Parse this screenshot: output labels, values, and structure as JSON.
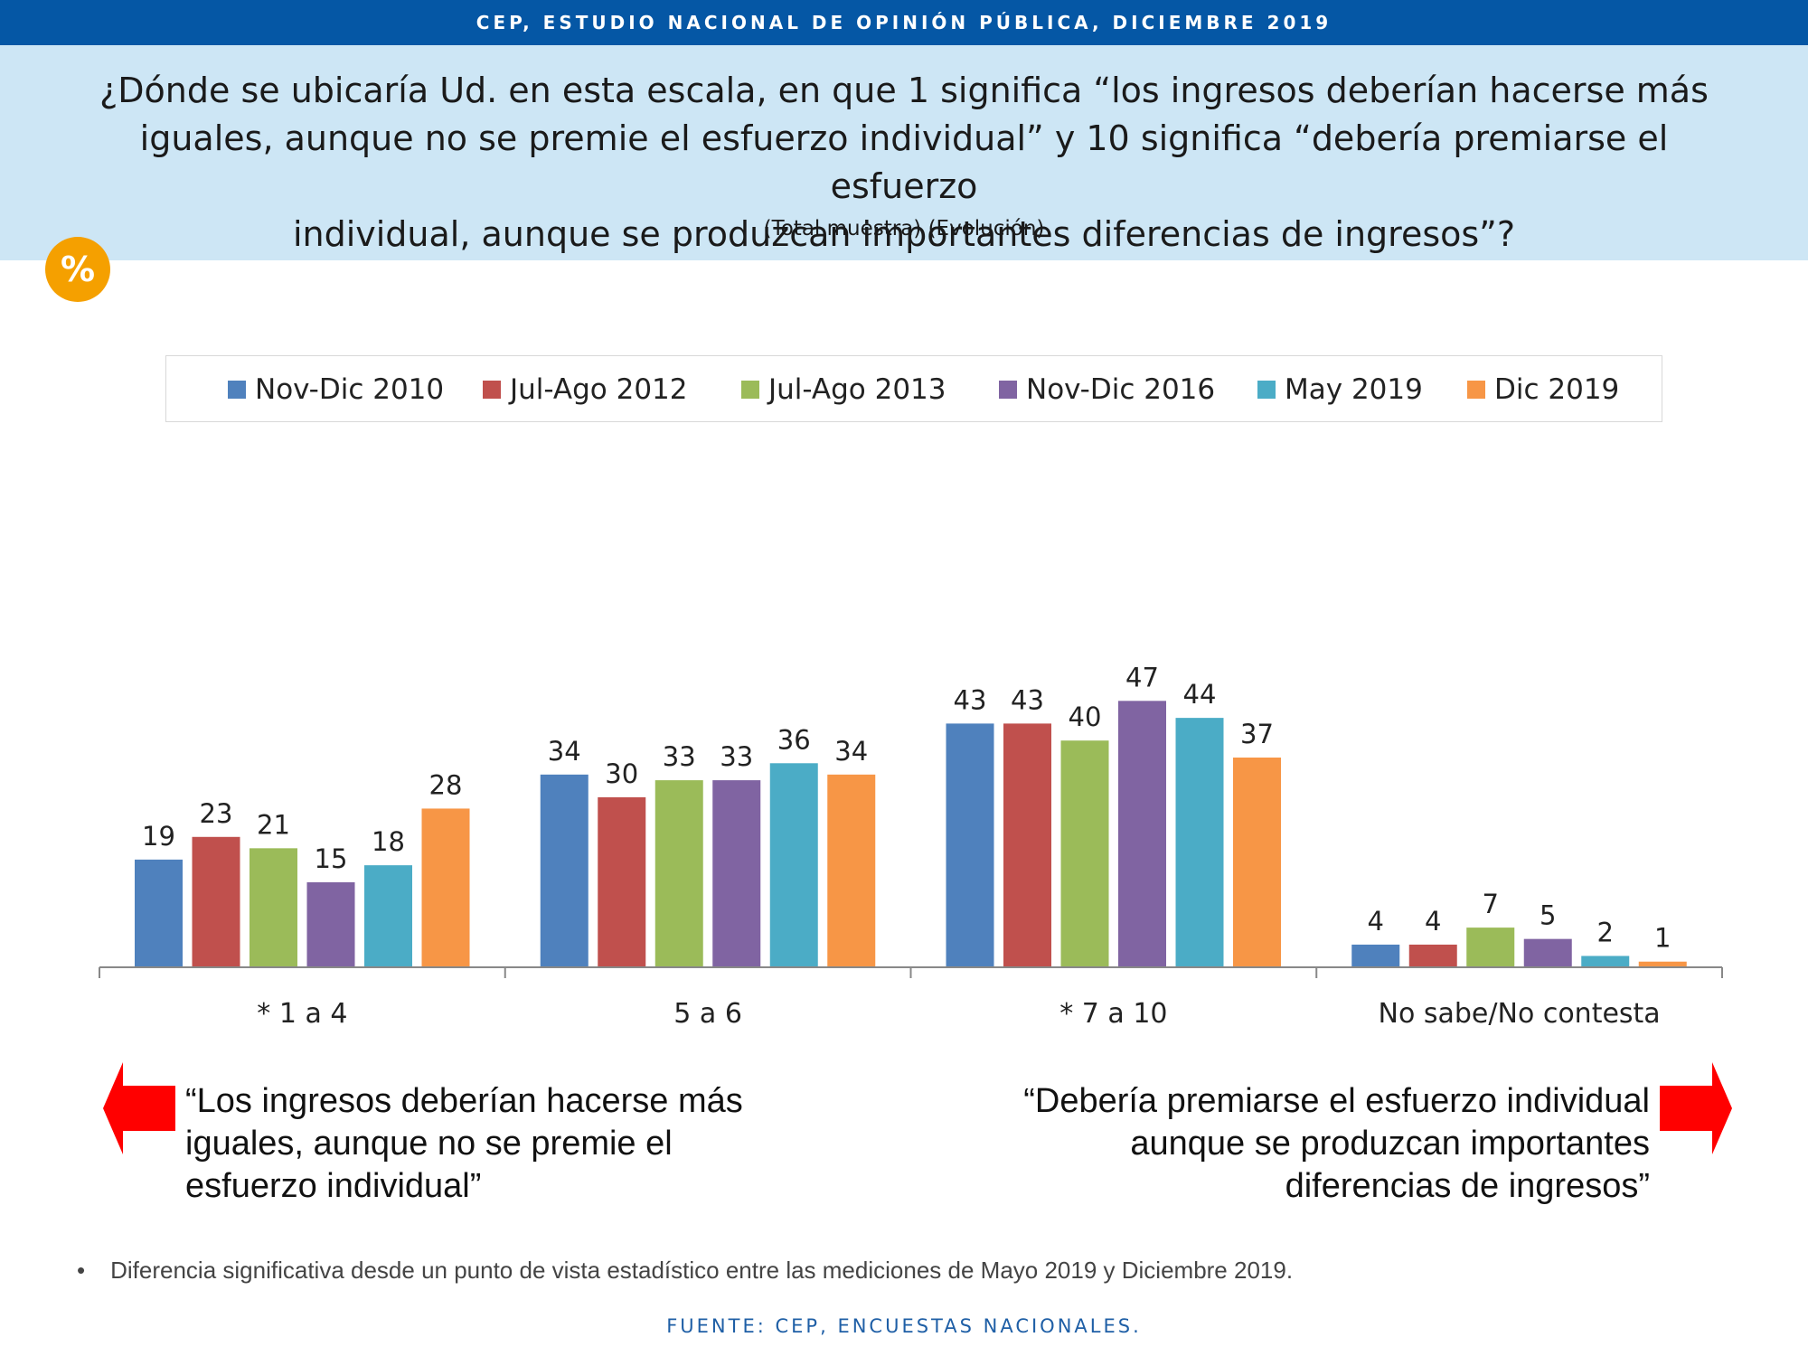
{
  "header": {
    "title": "CEP, ESTUDIO NACIONAL DE OPINIÓN PÚBLICA, DICIEMBRE 2019"
  },
  "question": {
    "line1": "¿Dónde se ubicaría Ud. en esta escala, en que 1 significa “los ingresos deberían hacerse más",
    "line2": "iguales, aunque no se premie el esfuerzo individual” y 10 significa “debería premiarse el esfuerzo",
    "line3": "individual, aunque se produzcan importantes diferencias de ingresos”?",
    "sub": "(Total muestra) (Evolución)"
  },
  "badge": {
    "label": "%",
    "color": "#f5a000"
  },
  "chart_data": {
    "type": "bar",
    "categories": [
      "* 1 a 4",
      "5 a 6",
      "* 7 a 10",
      "No sabe/No contesta"
    ],
    "series": [
      {
        "name": "Nov-Dic 2010",
        "color": "#4f81bd",
        "values": [
          19,
          34,
          43,
          4
        ]
      },
      {
        "name": "Jul-Ago 2012",
        "color": "#c0504d",
        "values": [
          23,
          30,
          43,
          4
        ]
      },
      {
        "name": "Jul-Ago 2013",
        "color": "#9bbb59",
        "values": [
          21,
          33,
          40,
          7
        ]
      },
      {
        "name": "Nov-Dic 2016",
        "color": "#8064a2",
        "values": [
          15,
          33,
          47,
          5
        ]
      },
      {
        "name": "May 2019",
        "color": "#4bacc6",
        "values": [
          18,
          36,
          44,
          2
        ]
      },
      {
        "name": "Dic 2019",
        "color": "#f79646",
        "values": [
          28,
          34,
          37,
          1
        ]
      }
    ],
    "legend_position": "top",
    "grid": false
  },
  "quotes": {
    "left": "“Los ingresos deberían hacerse más iguales, aunque no se premie el esfuerzo individual”",
    "right": "“Debería premiarse el esfuerzo individual aunque se produzcan importantes diferencias de ingresos”",
    "arrow_color": "#ff0000"
  },
  "note": {
    "bullet": "•",
    "text": "Diferencia significativa desde un punto de vista estadístico entre las mediciones de Mayo 2019 y Diciembre 2019."
  },
  "source": "FUENTE: CEP, ENCUESTAS NACIONALES."
}
